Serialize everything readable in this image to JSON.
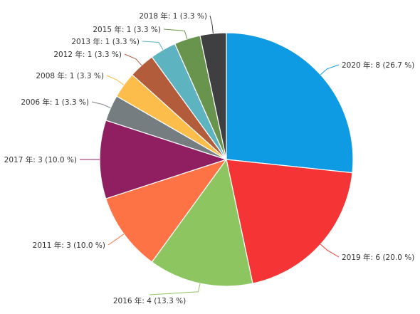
{
  "chart_data": {
    "type": "pie",
    "title": "",
    "start": "12 o'clock",
    "direction": "clockwise",
    "slices": [
      {
        "label": "2020 年: 8 (26.7 %)",
        "value": 8,
        "percent": 26.7,
        "color": "#0f9be3",
        "label_side": "right"
      },
      {
        "label": "2019 年: 6 (20.0 %)",
        "value": 6,
        "percent": 20.0,
        "color": "#f53436",
        "label_side": "right"
      },
      {
        "label": "2016 年: 4 (13.3 %)",
        "value": 4,
        "percent": 13.3,
        "color": "#8dc560",
        "label_side": "bottom"
      },
      {
        "label": "2011 年: 3 (10.0 %)",
        "value": 3,
        "percent": 10.0,
        "color": "#fe7345",
        "label_side": "left"
      },
      {
        "label": "2017 年: 3 (10.0 %)",
        "value": 3,
        "percent": 10.0,
        "color": "#901f62",
        "label_side": "left"
      },
      {
        "label": "2006 年: 1 (3.3 %)",
        "value": 1,
        "percent": 3.3,
        "color": "#757d81",
        "label_side": "left"
      },
      {
        "label": "2008 年: 1 (3.3 %)",
        "value": 1,
        "percent": 3.3,
        "color": "#fdbd4a",
        "label_side": "left"
      },
      {
        "label": "2012 年: 1 (3.3 %)",
        "value": 1,
        "percent": 3.3,
        "color": "#b25c3b",
        "label_side": "left"
      },
      {
        "label": "2013 年: 1 (3.3 %)",
        "value": 1,
        "percent": 3.3,
        "color": "#5eb3c0",
        "label_side": "left"
      },
      {
        "label": "2015 年: 1 (3.3 %)",
        "value": 1,
        "percent": 3.3,
        "color": "#69944d",
        "label_side": "left"
      },
      {
        "label": "2018 年: 1 (3.3 %)",
        "value": 1,
        "percent": 3.3,
        "color": "#3f3f41",
        "label_side": "left"
      }
    ]
  }
}
